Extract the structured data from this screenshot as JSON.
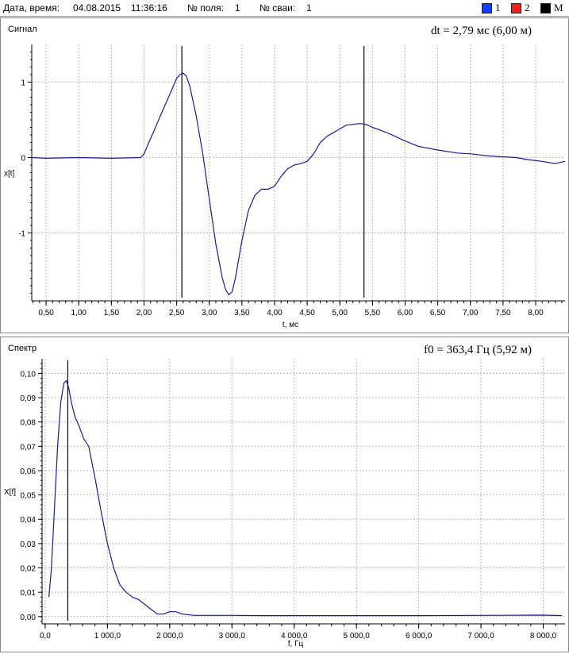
{
  "header": {
    "date_label": "Дата, время:",
    "date_value": "04.08.2015",
    "time_value": "11:36:16",
    "field_label": "№ поля:",
    "field_value": "1",
    "pile_label": "№ сваи:",
    "pile_value": "1",
    "legend": [
      {
        "label": "1",
        "color": "#1a3cff"
      },
      {
        "label": "2",
        "color": "#ff1a1a"
      },
      {
        "label": "М",
        "color": "#000000"
      }
    ]
  },
  "chart_data": [
    {
      "type": "line",
      "panel_title": "Сигнал",
      "readout": "dt = 2,79 мс  (6,00 м)",
      "xlabel": "t, мс",
      "ylabel": "x[t]",
      "xlim": [
        0.28,
        8.45
      ],
      "ylim": [
        -1.9,
        1.5
      ],
      "x_ticks": [
        0.5,
        1.0,
        1.5,
        2.0,
        2.5,
        3.0,
        3.5,
        4.0,
        4.5,
        5.0,
        5.5,
        6.0,
        6.5,
        7.0,
        7.5,
        8.0
      ],
      "x_tick_labels": [
        "0,50",
        "1,00",
        "1,50",
        "2,00",
        "2,50",
        "3,00",
        "3,50",
        "4,00",
        "4,50",
        "5,00",
        "5,50",
        "6,00",
        "6,50",
        "7,00",
        "7,50",
        "8,00"
      ],
      "y_ticks": [
        1,
        0,
        -1
      ],
      "y_tick_labels": [
        "1",
        "0",
        "-1"
      ],
      "grid": true,
      "line_color": "#1a1aa0",
      "markers": [
        2.58,
        5.37
      ],
      "series": [
        {
          "x": [
            0.28,
            0.5,
            1.0,
            1.5,
            1.95,
            2.0,
            2.1,
            2.2,
            2.3,
            2.4,
            2.5,
            2.55,
            2.6,
            2.65,
            2.7,
            2.8,
            2.9,
            3.0,
            3.1,
            3.2,
            3.25,
            3.3,
            3.35,
            3.4,
            3.5,
            3.6,
            3.7,
            3.8,
            3.9,
            4.0,
            4.1,
            4.2,
            4.3,
            4.4,
            4.5,
            4.6,
            4.7,
            4.8,
            4.9,
            5.0,
            5.1,
            5.2,
            5.3,
            5.4,
            5.5,
            5.6,
            5.8,
            6.0,
            6.2,
            6.5,
            6.8,
            7.0,
            7.3,
            7.5,
            7.7,
            7.9,
            8.1,
            8.3,
            8.45
          ],
          "y": [
            0.0,
            -0.01,
            0.0,
            -0.01,
            0.0,
            0.05,
            0.25,
            0.45,
            0.65,
            0.85,
            1.05,
            1.1,
            1.12,
            1.08,
            0.95,
            0.55,
            0.05,
            -0.55,
            -1.15,
            -1.6,
            -1.75,
            -1.82,
            -1.78,
            -1.6,
            -1.1,
            -0.7,
            -0.5,
            -0.42,
            -0.42,
            -0.38,
            -0.25,
            -0.15,
            -0.1,
            -0.08,
            -0.05,
            0.05,
            0.2,
            0.28,
            0.33,
            0.38,
            0.43,
            0.44,
            0.45,
            0.44,
            0.4,
            0.37,
            0.3,
            0.22,
            0.15,
            0.1,
            0.06,
            0.05,
            0.02,
            0.01,
            0.0,
            -0.03,
            -0.05,
            -0.08,
            -0.05
          ]
        }
      ]
    },
    {
      "type": "line",
      "panel_title": "Спектр",
      "readout": "f0 = 363,4 Гц  (5,92 м)",
      "xlabel": "f, Гц",
      "ylabel": "X[f]",
      "xlim": [
        -50,
        8350
      ],
      "ylim": [
        -0.003,
        0.106
      ],
      "x_ticks": [
        0,
        1000,
        2000,
        3000,
        4000,
        5000,
        6000,
        7000,
        8000
      ],
      "x_tick_labels": [
        "0,0",
        "1 000,0",
        "2 000,0",
        "3 000,0",
        "4 000,0",
        "5 000,0",
        "6 000,0",
        "7 000,0",
        "8 000,0"
      ],
      "y_ticks": [
        0.0,
        0.01,
        0.02,
        0.03,
        0.04,
        0.05,
        0.06,
        0.07,
        0.08,
        0.09,
        0.1
      ],
      "y_tick_labels": [
        "0,00",
        "0,01",
        "0,02",
        "0,03",
        "0,04",
        "0,05",
        "0,06",
        "0,07",
        "0,08",
        "0,09",
        "0,10"
      ],
      "grid": true,
      "line_color": "#1a1aa0",
      "markers": [
        363.4
      ],
      "series": [
        {
          "x": [
            60,
            100,
            150,
            200,
            250,
            300,
            340,
            380,
            420,
            480,
            550,
            620,
            700,
            800,
            900,
            1000,
            1100,
            1200,
            1300,
            1400,
            1500,
            1600,
            1700,
            1800,
            1900,
            2000,
            2100,
            2200,
            2400,
            2600,
            3000,
            3500,
            4000,
            5000,
            6000,
            7000,
            8000,
            8300
          ],
          "y": [
            0.008,
            0.02,
            0.045,
            0.07,
            0.088,
            0.096,
            0.097,
            0.094,
            0.088,
            0.082,
            0.078,
            0.073,
            0.07,
            0.057,
            0.043,
            0.03,
            0.02,
            0.013,
            0.01,
            0.008,
            0.007,
            0.005,
            0.003,
            0.001,
            0.001,
            0.002,
            0.002,
            0.001,
            0.0005,
            0.0005,
            0.0005,
            0.0004,
            0.0004,
            0.0004,
            0.0004,
            0.0005,
            0.0006,
            0.0004
          ]
        }
      ]
    }
  ]
}
